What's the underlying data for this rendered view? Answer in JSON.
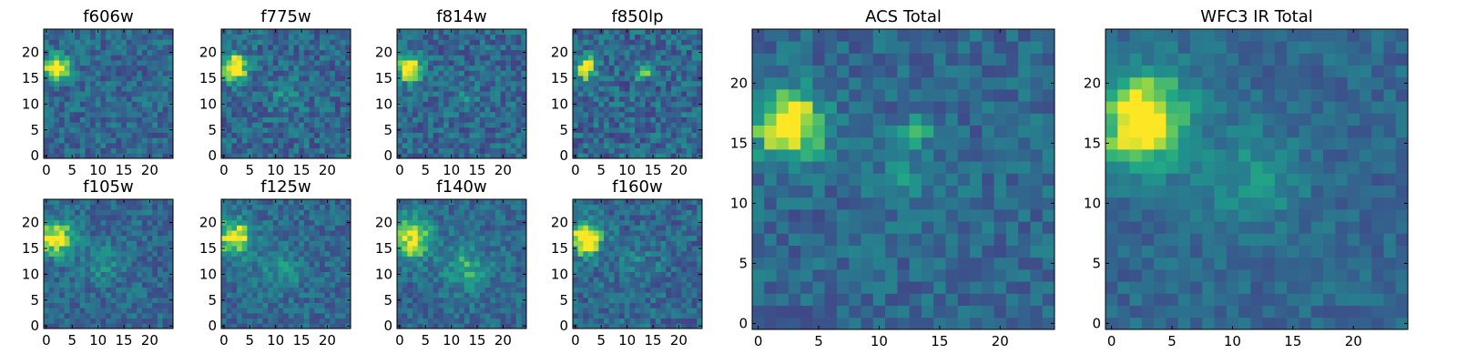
{
  "chart_data": [
    {
      "type": "heatmap",
      "title": "f606w",
      "xticks": [
        0,
        5,
        10,
        15,
        20
      ],
      "yticks": [
        0,
        5,
        10,
        15,
        20
      ],
      "xlim": [
        -0.5,
        24.5
      ],
      "ylim": [
        -0.5,
        24.5
      ],
      "colormap": "viridis",
      "sources": [
        {
          "x": 2,
          "y": 17,
          "amp": 0.72,
          "sigma": 1.7
        }
      ],
      "noise": 0.11,
      "seed": 11
    },
    {
      "type": "heatmap",
      "title": "f775w",
      "xticks": [
        0,
        5,
        10,
        15,
        20
      ],
      "yticks": [
        0,
        5,
        10,
        15,
        20
      ],
      "xlim": [
        -0.5,
        24.5
      ],
      "ylim": [
        -0.5,
        24.5
      ],
      "colormap": "viridis",
      "sources": [
        {
          "x": 2,
          "y": 17,
          "amp": 0.72,
          "sigma": 1.9
        },
        {
          "x": 12,
          "y": 12,
          "amp": 0.18,
          "sigma": 2.2
        }
      ],
      "noise": 0.12,
      "seed": 23
    },
    {
      "type": "heatmap",
      "title": "f814w",
      "xticks": [
        0,
        5,
        10,
        15,
        20
      ],
      "yticks": [
        0,
        5,
        10,
        15,
        20
      ],
      "xlim": [
        -0.5,
        24.5
      ],
      "ylim": [
        -0.5,
        24.5
      ],
      "colormap": "viridis",
      "sources": [
        {
          "x": 2,
          "y": 17,
          "amp": 0.7,
          "sigma": 1.8
        },
        {
          "x": 13,
          "y": 11,
          "amp": 0.15,
          "sigma": 1.6
        }
      ],
      "noise": 0.12,
      "seed": 37
    },
    {
      "type": "heatmap",
      "title": "f850lp",
      "xticks": [
        0,
        5,
        10,
        15,
        20
      ],
      "yticks": [
        0,
        5,
        10,
        15,
        20
      ],
      "xlim": [
        -0.5,
        24.5
      ],
      "ylim": [
        -0.5,
        24.5
      ],
      "colormap": "viridis",
      "sources": [
        {
          "x": 2,
          "y": 17,
          "amp": 0.6,
          "sigma": 1.6
        },
        {
          "x": 13,
          "y": 16,
          "amp": 0.65,
          "sigma": 0.9
        }
      ],
      "noise": 0.13,
      "seed": 41
    },
    {
      "type": "heatmap",
      "title": "f105w",
      "xticks": [
        0,
        5,
        10,
        15,
        20
      ],
      "yticks": [
        0,
        5,
        10,
        15,
        20
      ],
      "xlim": [
        -0.5,
        24.5
      ],
      "ylim": [
        -0.5,
        24.5
      ],
      "colormap": "viridis",
      "sources": [
        {
          "x": 2,
          "y": 17,
          "amp": 0.65,
          "sigma": 2.4
        },
        {
          "x": 11,
          "y": 12,
          "amp": 0.2,
          "sigma": 2.5
        }
      ],
      "noise": 0.1,
      "seed": 53
    },
    {
      "type": "heatmap",
      "title": "f125w",
      "xticks": [
        0,
        5,
        10,
        15,
        20
      ],
      "yticks": [
        0,
        5,
        10,
        15,
        20
      ],
      "xlim": [
        -0.5,
        24.5
      ],
      "ylim": [
        -0.5,
        24.5
      ],
      "colormap": "viridis",
      "sources": [
        {
          "x": 2,
          "y": 17,
          "amp": 0.62,
          "sigma": 2.6
        },
        {
          "x": 11,
          "y": 11,
          "amp": 0.22,
          "sigma": 2.8
        }
      ],
      "noise": 0.1,
      "seed": 67
    },
    {
      "type": "heatmap",
      "title": "f140w",
      "xticks": [
        0,
        5,
        10,
        15,
        20
      ],
      "yticks": [
        0,
        5,
        10,
        15,
        20
      ],
      "xlim": [
        -0.5,
        24.5
      ],
      "ylim": [
        -0.5,
        24.5
      ],
      "colormap": "viridis",
      "sources": [
        {
          "x": 2,
          "y": 17,
          "amp": 0.6,
          "sigma": 3.0
        },
        {
          "x": 13,
          "y": 11,
          "amp": 0.3,
          "sigma": 3.2
        }
      ],
      "noise": 0.1,
      "seed": 79
    },
    {
      "type": "heatmap",
      "title": "f160w",
      "xticks": [
        0,
        5,
        10,
        15,
        20
      ],
      "yticks": [
        0,
        5,
        10,
        15,
        20
      ],
      "xlim": [
        -0.5,
        24.5
      ],
      "ylim": [
        -0.5,
        24.5
      ],
      "colormap": "viridis",
      "sources": [
        {
          "x": 2,
          "y": 17,
          "amp": 0.8,
          "sigma": 2.2
        },
        {
          "x": 12,
          "y": 12,
          "amp": 0.15,
          "sigma": 2.5
        }
      ],
      "noise": 0.11,
      "seed": 83
    },
    {
      "type": "heatmap",
      "title": "ACS Total",
      "xticks": [
        0,
        5,
        10,
        15,
        20
      ],
      "yticks": [
        0,
        5,
        10,
        15,
        20
      ],
      "xlim": [
        -0.5,
        24.5
      ],
      "ylim": [
        -0.5,
        24.5
      ],
      "colormap": "viridis",
      "sources": [
        {
          "x": 2.5,
          "y": 16.5,
          "amp": 0.75,
          "sigma": 2.0
        },
        {
          "x": 13,
          "y": 16,
          "amp": 0.5,
          "sigma": 0.8
        },
        {
          "x": 12,
          "y": 12,
          "amp": 0.2,
          "sigma": 1.6
        }
      ],
      "noise": 0.09,
      "seed": 97
    },
    {
      "type": "heatmap",
      "title": "WFC3 IR Total",
      "xticks": [
        0,
        5,
        10,
        15,
        20
      ],
      "yticks": [
        0,
        5,
        10,
        15,
        20
      ],
      "xlim": [
        -0.5,
        24.5
      ],
      "ylim": [
        -0.5,
        24.5
      ],
      "colormap": "viridis",
      "sources": [
        {
          "x": 2.5,
          "y": 17,
          "amp": 0.72,
          "sigma": 2.8
        },
        {
          "x": 12,
          "y": 12,
          "amp": 0.25,
          "sigma": 2.6
        }
      ],
      "noise": 0.07,
      "seed": 101
    }
  ]
}
